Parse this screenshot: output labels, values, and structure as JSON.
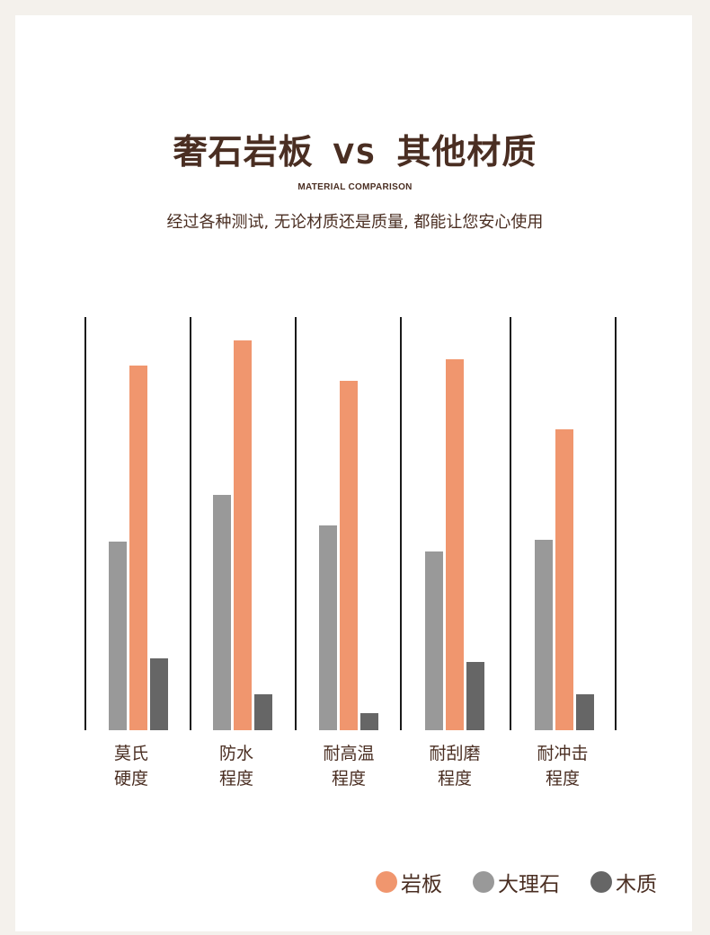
{
  "header": {
    "title_left": "奢石岩板",
    "title_vs": "VS",
    "title_right": "其他材质",
    "subtitle_en": "MATERIAL COMPARISON",
    "subtitle_cn": "经过各种测试, 无论材质还是质量, 都能让您安心使用"
  },
  "chart_data": {
    "type": "bar",
    "categories": [
      [
        "莫氏",
        "硬度"
      ],
      [
        "防水",
        "程度"
      ],
      [
        "耐高温",
        "程度"
      ],
      [
        "耐刮磨",
        "程度"
      ],
      [
        "耐冲击",
        "程度"
      ]
    ],
    "series": [
      {
        "name": "大理石",
        "color": "#999999",
        "values": [
          210,
          262,
          228,
          199,
          212
        ]
      },
      {
        "name": "岩板",
        "color": "#f0966e",
        "values": [
          406,
          434,
          389,
          413,
          335
        ]
      },
      {
        "name": "木质",
        "color": "#666666",
        "values": [
          80,
          40,
          19,
          76,
          40
        ]
      }
    ],
    "ylim": [
      0,
      460
    ]
  },
  "legend": [
    {
      "label": "岩板",
      "color": "#f0966e"
    },
    {
      "label": "大理石",
      "color": "#999999"
    },
    {
      "label": "木质",
      "color": "#666666"
    }
  ]
}
